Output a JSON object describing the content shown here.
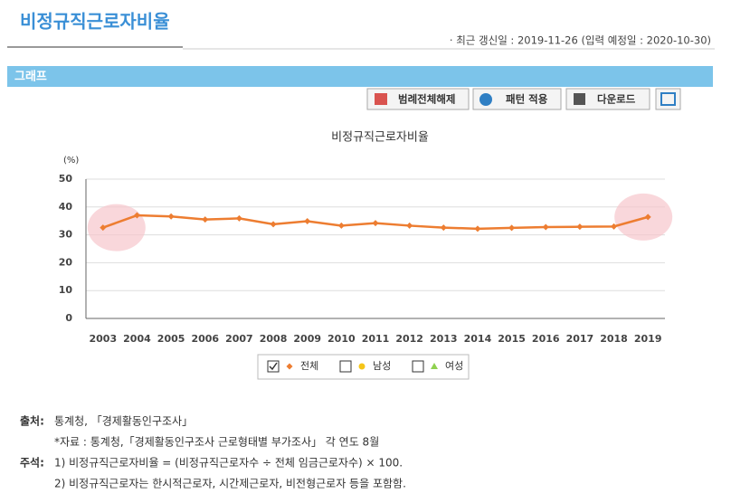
{
  "header": {
    "title": "비정규직근로자비율",
    "updated": "· 최근 갱신일 : 2019-11-26 (입력 예정일 : 2020-10-30)"
  },
  "section": {
    "title": "그래프"
  },
  "buttons": [
    "범례전체해제",
    "패턴 적용",
    "다운로드"
  ],
  "chart_data": {
    "type": "line",
    "title": "비정규직근로자비율",
    "y_label": "(%)",
    "categories": [
      "2003",
      "2004",
      "2005",
      "2006",
      "2007",
      "2008",
      "2009",
      "2010",
      "2011",
      "2012",
      "2013",
      "2014",
      "2015",
      "2016",
      "2017",
      "2018",
      "2019"
    ],
    "series": [
      {
        "name": "전체",
        "color": "#ed7d31",
        "values": [
          32.6,
          37.0,
          36.6,
          35.5,
          35.9,
          33.8,
          34.9,
          33.3,
          34.2,
          33.3,
          32.6,
          32.2,
          32.5,
          32.8,
          32.9,
          33.0,
          36.4
        ]
      }
    ],
    "ylim": [
      0,
      50
    ],
    "yticks": [
      0,
      10,
      20,
      30,
      40,
      50
    ],
    "grid": true
  },
  "legend": [
    {
      "name": "전체",
      "color": "#ed7d31",
      "checked": true,
      "marker": "diamond"
    },
    {
      "name": "남성",
      "color": "#f5c518",
      "checked": false,
      "marker": "circle"
    },
    {
      "name": "여성",
      "color": "#8fd14f",
      "checked": false,
      "marker": "triangle"
    }
  ],
  "notes": {
    "source_label": "출처:",
    "source": "통계청, 「경제활동인구조사」",
    "data_note": "*자료 : 통계청,「경제활동인구조사 근로형태별 부가조사」 각 연도 8월",
    "remark_label": "주석:",
    "remarks": [
      "1) 비정규직근로자비율 = (비정규직근로자수 ÷ 전체 임금근로자수) × 100.",
      "2) 비정규직근로자는 한시적근로자, 시간제근로자, 비전형근로자 등을 포함함."
    ]
  }
}
